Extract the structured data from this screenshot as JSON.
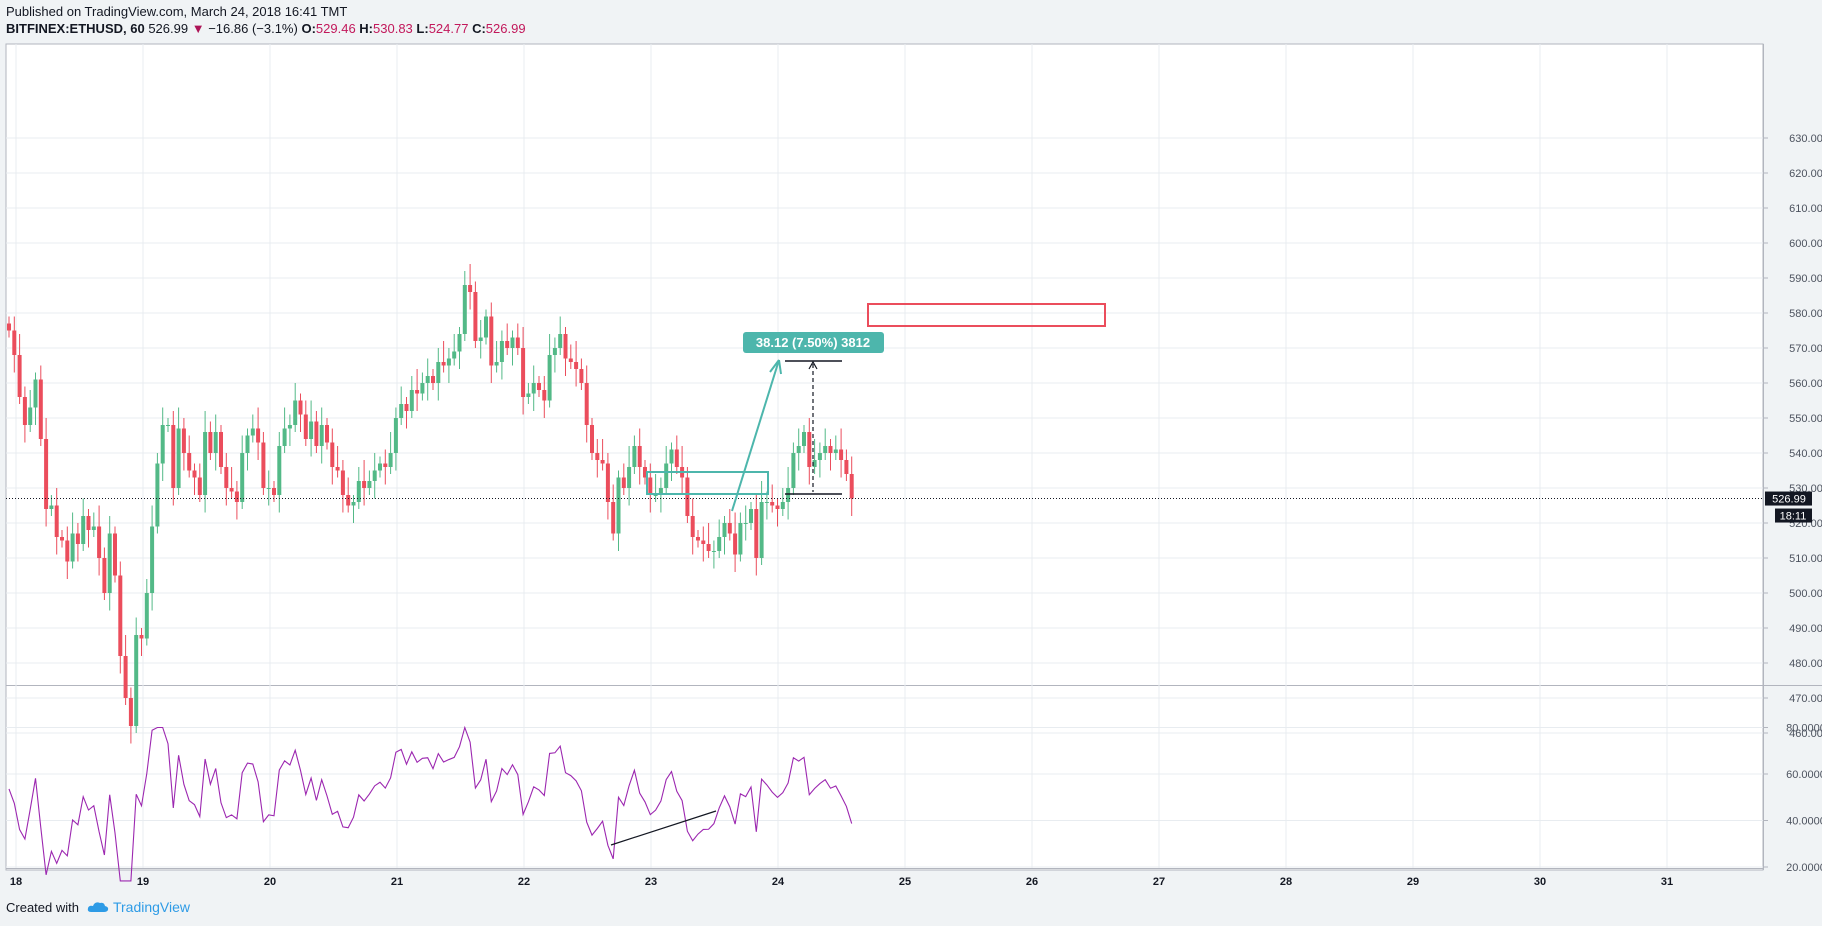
{
  "header": {
    "published": "Published on TradingView.com, March 24, 2018 16:41 TMT",
    "symbol": "BITFINEX:ETHUSD, 60",
    "last": "526.99",
    "arrow": "▼",
    "change": "−16.86 (−3.1%)",
    "o_label": "O:",
    "o": "529.46",
    "h_label": "H:",
    "h": "530.83",
    "l_label": "L:",
    "l": "524.77",
    "c_label": "C:",
    "c": "526.99"
  },
  "footer": {
    "created": "Created with",
    "brand": "TradingView"
  },
  "colors": {
    "up": "#53b987",
    "down": "#eb4d5c",
    "rsi": "#9c27b0",
    "accent": "#4db6ac"
  },
  "chart_data": [
    {
      "type": "candlestick",
      "ylim": [
        455,
        635
      ],
      "y_ticks": [
        "630.00",
        "620.00",
        "610.00",
        "600.00",
        "590.00",
        "580.00",
        "570.00",
        "560.00",
        "550.00",
        "540.00",
        "530.00",
        "520.00",
        "510.00",
        "500.00",
        "490.00",
        "480.00",
        "470.00",
        "460.00"
      ],
      "x_ticks": [
        "18",
        "19",
        "20",
        "21",
        "22",
        "23",
        "24",
        "25",
        "26",
        "27",
        "28",
        "29",
        "30",
        "31"
      ],
      "last_price_label": "526.99",
      "countdown_label": "18:11",
      "measure_label": "38.12 (7.50%) 3812",
      "closes": [
        575,
        568,
        556,
        548,
        553,
        561,
        544,
        524,
        525,
        516,
        515,
        509,
        517,
        514,
        522,
        518,
        519,
        510,
        500,
        517,
        505,
        482,
        470,
        462,
        488,
        487,
        500,
        519,
        537,
        548,
        548,
        530,
        547,
        540,
        535,
        533,
        528,
        546,
        540,
        546,
        536,
        530,
        529,
        526,
        540,
        545,
        547,
        543,
        530,
        530,
        528,
        542,
        547,
        548,
        555,
        551,
        544,
        549,
        542,
        548,
        543,
        536,
        535,
        528,
        525,
        526,
        532,
        530,
        532,
        535,
        537,
        536,
        540,
        550,
        554,
        552,
        558,
        557,
        560,
        562,
        560,
        566,
        565,
        567,
        569,
        574,
        588,
        586,
        572,
        573,
        579,
        565,
        566,
        572,
        570,
        573,
        570,
        556,
        557,
        560,
        558,
        555,
        568,
        570,
        574,
        567,
        566,
        564,
        560,
        548,
        540,
        538,
        537,
        526,
        517,
        533,
        530,
        536,
        542,
        536,
        533,
        528,
        528,
        530,
        537,
        541,
        536,
        533,
        522,
        516,
        515,
        514,
        512,
        512,
        516,
        520,
        517,
        511,
        520,
        520,
        524,
        510,
        526,
        526,
        525,
        524,
        526,
        530,
        540,
        542,
        546,
        536,
        538,
        540,
        542,
        540,
        541,
        538,
        534,
        527
      ],
      "rsi_ylim": [
        12,
        82
      ],
      "rsi_ticks": [
        "80.0000",
        "60.0000",
        "40.0000",
        "20.0000"
      ]
    }
  ]
}
